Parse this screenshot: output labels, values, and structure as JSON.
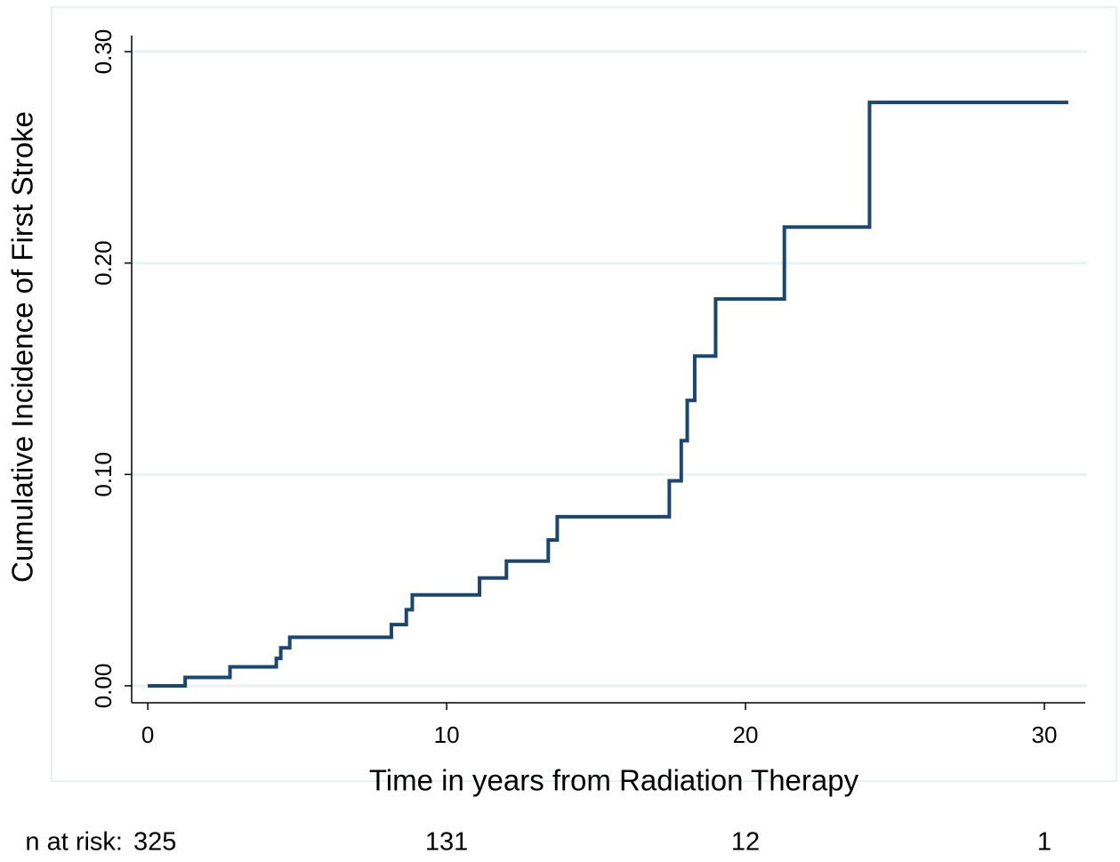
{
  "chart_data": {
    "type": "step",
    "x_label": "Time in years from Radiation Therapy",
    "y_label": "Cumulative Incidence of First Stroke",
    "x": [
      0,
      1.25,
      2.75,
      4.3,
      4.45,
      4.75,
      8.15,
      8.65,
      8.85,
      11.1,
      12,
      13.4,
      13.7,
      17.45,
      17.85,
      18.05,
      18.3,
      19,
      21.3,
      24.15,
      30.8
    ],
    "values": [
      0,
      0.004,
      0.009,
      0.013,
      0.018,
      0.023,
      0.029,
      0.036,
      0.043,
      0.051,
      0.059,
      0.069,
      0.08,
      0.097,
      0.116,
      0.135,
      0.156,
      0.183,
      0.217,
      0.276,
      0.276
    ],
    "color": "#1a476f",
    "xlim": [
      -0.54,
      31.37
    ],
    "ylim": [
      -0.008,
      0.3076
    ],
    "xticks": [
      0,
      10,
      20,
      30
    ],
    "yticks": [
      {
        "value": 0,
        "label": "0.00"
      },
      {
        "value": 0.1,
        "label": "0.10"
      },
      {
        "value": 0.2,
        "label": "0.20"
      },
      {
        "value": 0.3,
        "label": "0.30"
      }
    ],
    "grid": true,
    "risk_table": {
      "label": "n at risk:",
      "x": [
        0,
        10,
        20,
        30
      ],
      "values": [
        325,
        131,
        12,
        1
      ]
    }
  }
}
